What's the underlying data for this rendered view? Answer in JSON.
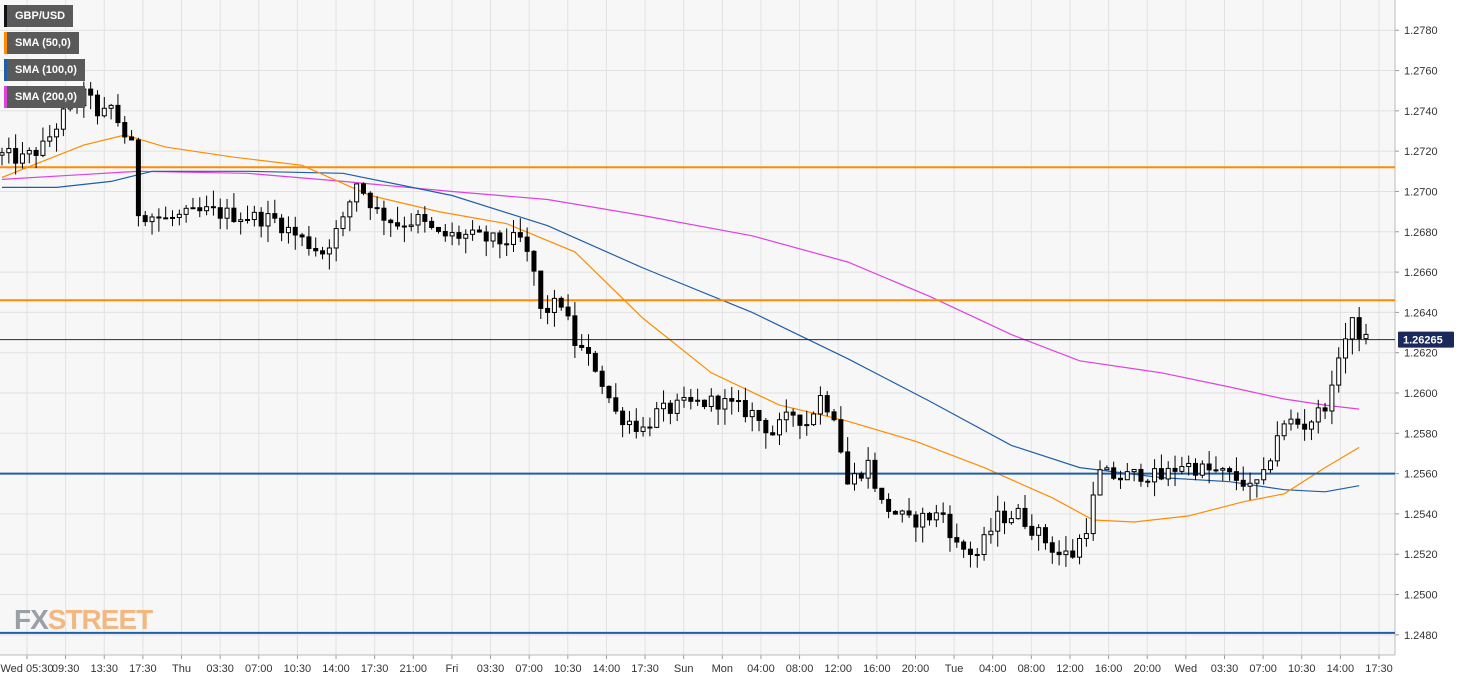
{
  "chart_data": {
    "type": "candlestick",
    "symbol": "GBP/USD",
    "last_price": "1.26265",
    "ylim": [
      1.247,
      1.2795
    ],
    "y_ticks": [
      "1.2780",
      "1.2760",
      "1.2740",
      "1.2720",
      "1.2700",
      "1.2680",
      "1.2660",
      "1.2640",
      "1.2620",
      "1.2600",
      "1.2580",
      "1.2560",
      "1.2540",
      "1.2520",
      "1.2500",
      "1.2480"
    ],
    "x_ticks": [
      "Wed 05:30",
      "09:30",
      "13:30",
      "17:30",
      "Thu",
      "03:30",
      "07:00",
      "10:30",
      "14:00",
      "17:30",
      "21:00",
      "Fri",
      "03:30",
      "07:00",
      "10:30",
      "14:00",
      "17:30",
      "Sun",
      "Mon",
      "04:00",
      "08:00",
      "12:00",
      "16:00",
      "20:00",
      "Tue",
      "04:00",
      "08:00",
      "12:00",
      "16:00",
      "20:00",
      "Wed",
      "03:30",
      "07:00",
      "10:30",
      "14:00",
      "17:30"
    ],
    "legend": [
      {
        "name": "GBP/USD",
        "color": "#000000"
      },
      {
        "name": "SMA (50,0)",
        "color": "#ff8c00"
      },
      {
        "name": "SMA (100,0)",
        "color": "#1f5fa8"
      },
      {
        "name": "SMA (200,0)",
        "color": "#e040e0"
      }
    ],
    "horizontal_levels": [
      {
        "value": 1.2712,
        "color": "#ff8c00"
      },
      {
        "value": 1.2646,
        "color": "#ff8c00"
      },
      {
        "value": 1.256,
        "color": "#1f5fa8"
      },
      {
        "value": 1.2481,
        "color": "#1f5fa8"
      }
    ],
    "price_anchors": [
      [
        0,
        1.2718
      ],
      [
        3,
        1.2716
      ],
      [
        6,
        1.2722
      ],
      [
        9,
        1.2738
      ],
      [
        11,
        1.2744
      ],
      [
        13,
        1.275
      ],
      [
        14,
        1.2735
      ],
      [
        16,
        1.2742
      ],
      [
        18,
        1.2728
      ],
      [
        19,
        1.2722
      ],
      [
        20,
        1.269
      ],
      [
        24,
        1.2686
      ],
      [
        30,
        1.269
      ],
      [
        35,
        1.2688
      ],
      [
        40,
        1.2686
      ],
      [
        44,
        1.2676
      ],
      [
        47,
        1.267
      ],
      [
        50,
        1.2685
      ],
      [
        52,
        1.2705
      ],
      [
        55,
        1.269
      ],
      [
        58,
        1.2684
      ],
      [
        61,
        1.2686
      ],
      [
        64,
        1.2678
      ],
      [
        68,
        1.2678
      ],
      [
        73,
        1.2675
      ],
      [
        76,
        1.2676
      ],
      [
        78,
        1.266
      ],
      [
        79,
        1.264
      ],
      [
        82,
        1.2645
      ],
      [
        84,
        1.2625
      ],
      [
        87,
        1.2613
      ],
      [
        90,
        1.259
      ],
      [
        94,
        1.2582
      ],
      [
        96,
        1.259
      ],
      [
        100,
        1.2594
      ],
      [
        105,
        1.2596
      ],
      [
        110,
        1.259
      ],
      [
        113,
        1.258
      ],
      [
        116,
        1.259
      ],
      [
        118,
        1.2585
      ],
      [
        120,
        1.2598
      ],
      [
        122,
        1.259
      ],
      [
        124,
        1.2555
      ],
      [
        127,
        1.2565
      ],
      [
        129,
        1.2545
      ],
      [
        133,
        1.2536
      ],
      [
        135,
        1.2538
      ],
      [
        138,
        1.254
      ],
      [
        140,
        1.2524
      ],
      [
        143,
        1.252
      ],
      [
        146,
        1.2538
      ],
      [
        149,
        1.254
      ],
      [
        152,
        1.253
      ],
      [
        155,
        1.252
      ],
      [
        157,
        1.252
      ],
      [
        159,
        1.2534
      ],
      [
        161,
        1.256
      ],
      [
        164,
        1.2558
      ],
      [
        167,
        1.256
      ],
      [
        170,
        1.2558
      ],
      [
        173,
        1.2565
      ],
      [
        176,
        1.2562
      ],
      [
        179,
        1.256
      ],
      [
        182,
        1.2556
      ],
      [
        183,
        1.2552
      ],
      [
        185,
        1.2558
      ],
      [
        187,
        1.258
      ],
      [
        189,
        1.2586
      ],
      [
        191,
        1.2584
      ],
      [
        193,
        1.259
      ],
      [
        195,
        1.26
      ],
      [
        196,
        1.262
      ],
      [
        198,
        1.2634
      ],
      [
        200,
        1.2626
      ]
    ],
    "sma_50": [
      [
        0,
        1.2707
      ],
      [
        6,
        1.2715
      ],
      [
        12,
        1.2723
      ],
      [
        18,
        1.2728
      ],
      [
        24,
        1.2722
      ],
      [
        34,
        1.2717
      ],
      [
        44,
        1.2713
      ],
      [
        54,
        1.2698
      ],
      [
        64,
        1.269
      ],
      [
        74,
        1.2684
      ],
      [
        84,
        1.267
      ],
      [
        94,
        1.2637
      ],
      [
        104,
        1.261
      ],
      [
        114,
        1.2594
      ],
      [
        124,
        1.2586
      ],
      [
        134,
        1.2576
      ],
      [
        144,
        1.2563
      ],
      [
        154,
        1.2548
      ],
      [
        160,
        1.2537
      ],
      [
        166,
        1.2536
      ],
      [
        174,
        1.2539
      ],
      [
        182,
        1.2546
      ],
      [
        188,
        1.255
      ],
      [
        194,
        1.2563
      ],
      [
        199,
        1.2573
      ]
    ],
    "sma_100": [
      [
        0,
        1.2702
      ],
      [
        8,
        1.2702
      ],
      [
        16,
        1.2705
      ],
      [
        22,
        1.271
      ],
      [
        36,
        1.271
      ],
      [
        50,
        1.2709
      ],
      [
        66,
        1.2698
      ],
      [
        80,
        1.2683
      ],
      [
        94,
        1.2662
      ],
      [
        110,
        1.264
      ],
      [
        124,
        1.2617
      ],
      [
        136,
        1.2596
      ],
      [
        148,
        1.2574
      ],
      [
        158,
        1.2563
      ],
      [
        170,
        1.2558
      ],
      [
        180,
        1.2556
      ],
      [
        188,
        1.2552
      ],
      [
        194,
        1.2551
      ],
      [
        199,
        1.2554
      ]
    ],
    "sma_200": [
      [
        0,
        1.2706
      ],
      [
        10,
        1.2708
      ],
      [
        20,
        1.271
      ],
      [
        36,
        1.2709
      ],
      [
        50,
        1.2705
      ],
      [
        66,
        1.27
      ],
      [
        80,
        1.2696
      ],
      [
        94,
        1.2688
      ],
      [
        110,
        1.2678
      ],
      [
        124,
        1.2665
      ],
      [
        136,
        1.2648
      ],
      [
        148,
        1.2629
      ],
      [
        158,
        1.2616
      ],
      [
        170,
        1.261
      ],
      [
        180,
        1.2603
      ],
      [
        188,
        1.2597
      ],
      [
        194,
        1.2594
      ],
      [
        199,
        1.2592
      ]
    ]
  },
  "watermark": {
    "part1": "FX",
    "part2": "STREET"
  }
}
